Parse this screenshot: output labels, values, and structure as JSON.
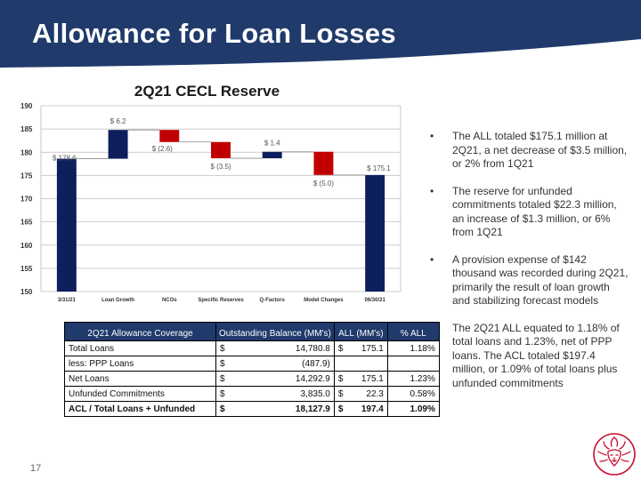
{
  "header": {
    "title": "Allowance for Loan Losses",
    "banner_color": "#1f3a6b"
  },
  "slide_number": "17",
  "chart_data": {
    "type": "bar",
    "subtype": "waterfall",
    "title": "2Q21 CECL Reserve",
    "categories": [
      "3/31/21",
      "Loan Growth",
      "NCOs",
      "Specific Reserves",
      "Q-Factors",
      "Model Changes",
      "06/30/21"
    ],
    "values": [
      178.6,
      6.2,
      -2.6,
      -3.5,
      1.4,
      -5.0,
      175.1
    ],
    "bar_kind": [
      "total",
      "delta",
      "delta",
      "delta",
      "delta",
      "delta",
      "total"
    ],
    "data_labels": [
      "$ 178.6",
      "$ 6.2",
      "$ (2.6)",
      "$ (3.5)",
      "$ 1.4",
      "$ (5.0)",
      "$ 175.1"
    ],
    "ylim": [
      150,
      190
    ],
    "yticks": [
      "150",
      "155",
      "160",
      "165",
      "170",
      "175",
      "180",
      "185",
      "190"
    ],
    "grid": true,
    "colors": {
      "total": "#0d1f5c",
      "increase": "#0d1f5c",
      "decrease": "#c00000"
    }
  },
  "bullets": [
    "The ALL totaled $175.1 million at 2Q21, a net decrease of $3.5 million, or 2% from 1Q21",
    "The reserve for unfunded commitments totaled $22.3 million, an increase of $1.3 million, or 6% from 1Q21",
    "A provision expense of $142 thousand was recorded during 2Q21, primarily the result of loan growth and stabilizing forecast models",
    "The 2Q21 ALL equated to 1.18% of total loans and 1.23%, net of PPP loans.  The ACL totaled $197.4 million, or 1.09% of total loans plus unfunded commitments"
  ],
  "bullet_glyph": "•",
  "table": {
    "headers": [
      "2Q21 Allowance Coverage",
      "Outstanding Balance (MM's)",
      "ALL (MM's)",
      "% ALL"
    ],
    "rows": [
      {
        "label": "Total Loans",
        "bal_cur": "$",
        "bal": "14,780.8",
        "all_cur": "$",
        "all": "175.1",
        "pct": "1.18%"
      },
      {
        "label": "less: PPP Loans",
        "bal_cur": "$",
        "bal": "(487.9)",
        "all_cur": "",
        "all": "",
        "pct": ""
      },
      {
        "label": "Net Loans",
        "bal_cur": "$",
        "bal": "14,292.9",
        "all_cur": "$",
        "all": "175.1",
        "pct": "1.23%"
      },
      {
        "label": "Unfunded Commitments",
        "bal_cur": "$",
        "bal": "3,835.0",
        "all_cur": "$",
        "all": "22.3",
        "pct": "0.58%"
      },
      {
        "label": "ACL / Total Loans + Unfunded",
        "bal_cur": "$",
        "bal": "18,127.9",
        "all_cur": "$",
        "all": "197.4",
        "pct": "1.09%"
      }
    ]
  }
}
